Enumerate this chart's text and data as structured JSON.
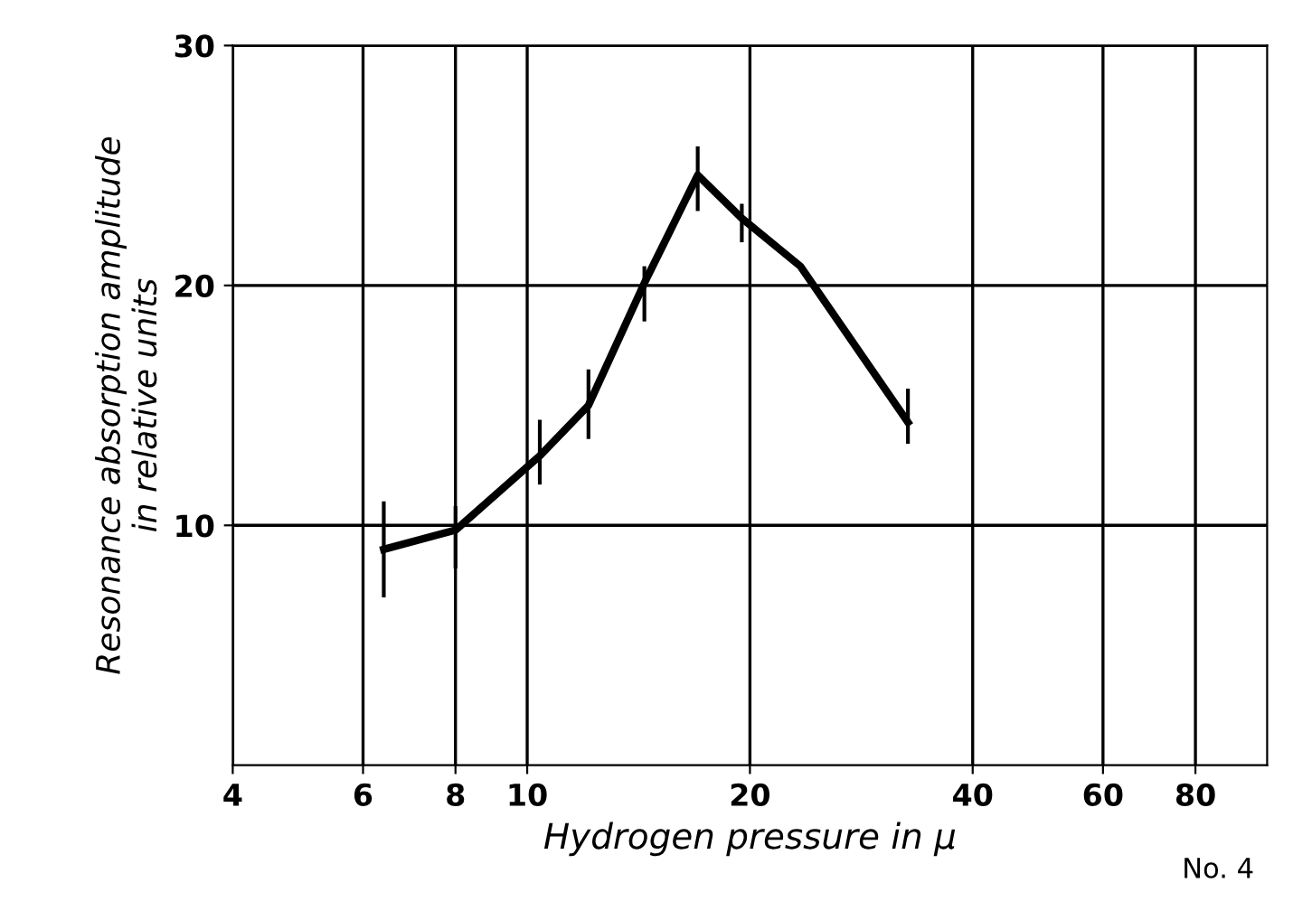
{
  "chart_data": {
    "type": "line",
    "xlabel": "Hydrogen pressure in μ",
    "ylabel": "Resonance absorption amplitude\nin relative units",
    "x": [
      6.4,
      8,
      10.4,
      12.1,
      14.4,
      17.0,
      19.5,
      23.4,
      32.7
    ],
    "series": [
      {
        "color": "#000000",
        "values": [
          9.0,
          9.8,
          12.9,
          15.0,
          20.1,
          24.6,
          22.8,
          20.8,
          14.3
        ],
        "errors": [
          [
            7.0,
            11.0
          ],
          [
            8.2,
            10.8
          ],
          [
            11.7,
            14.4
          ],
          [
            13.6,
            16.5
          ],
          [
            18.5,
            20.8
          ],
          [
            23.1,
            25.8
          ],
          [
            21.8,
            23.4
          ],
          null,
          [
            13.4,
            15.7
          ]
        ]
      }
    ],
    "log": "x",
    "xlim": [
      4,
      100
    ],
    "xticks": [
      4,
      6,
      8,
      10,
      20,
      40,
      60,
      80
    ],
    "ylim": [
      0,
      30
    ],
    "yticks": [
      10,
      20,
      30
    ],
    "grid": true,
    "marker": "none",
    "line_style": "solid",
    "annotations": [
      "No. 4"
    ]
  }
}
